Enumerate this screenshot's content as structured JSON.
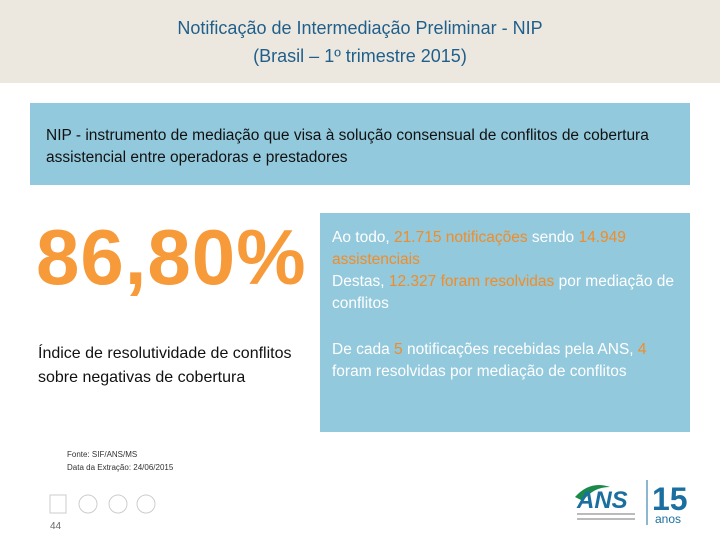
{
  "header": {
    "title_line1": "Notificação de Intermediação Preliminar - NIP",
    "title_line2": "(Brasil – 1º trimestre 2015)"
  },
  "intro_box": {
    "text": "NIP - instrumento de mediação que visa à solução consensual de conflitos de cobertura assistencial entre operadoras e prestadores"
  },
  "highlight": {
    "value_text": "86,80%",
    "caption": "Índice de resolutividade de conflitos sobre negativas de cobertura"
  },
  "right_panel": {
    "highlight_color": "#f28c28",
    "paragraphs": [
      {
        "segments": [
          {
            "text": "Ao todo, ",
            "highlight": false
          },
          {
            "text": "21.715 notificações",
            "highlight": true
          },
          {
            "text": " sendo ",
            "highlight": false
          },
          {
            "text": "14.949 assistenciais",
            "highlight": true
          }
        ]
      },
      {
        "segments": [
          {
            "text": "Destas, ",
            "highlight": false
          },
          {
            "text": "12.327 foram resolvidas",
            "highlight": true
          },
          {
            "text": " por mediação de conflitos",
            "highlight": false
          }
        ]
      },
      {
        "segments": [
          {
            "text": "De cada ",
            "highlight": false
          },
          {
            "text": "5",
            "highlight": true
          },
          {
            "text": " notificações recebidas pela ANS, ",
            "highlight": false
          },
          {
            "text": "4",
            "highlight": true
          },
          {
            "text": " foram resolvidas por mediação de conflitos",
            "highlight": false
          }
        ]
      }
    ]
  },
  "footer": {
    "source": "Fonte: SIF/ANS/MS",
    "extraction_date": "Data da Extração: 24/06/2015",
    "page_number": "44",
    "logo_text": "ANS",
    "anniversary_number": "15",
    "anniversary_word": "anos"
  }
}
